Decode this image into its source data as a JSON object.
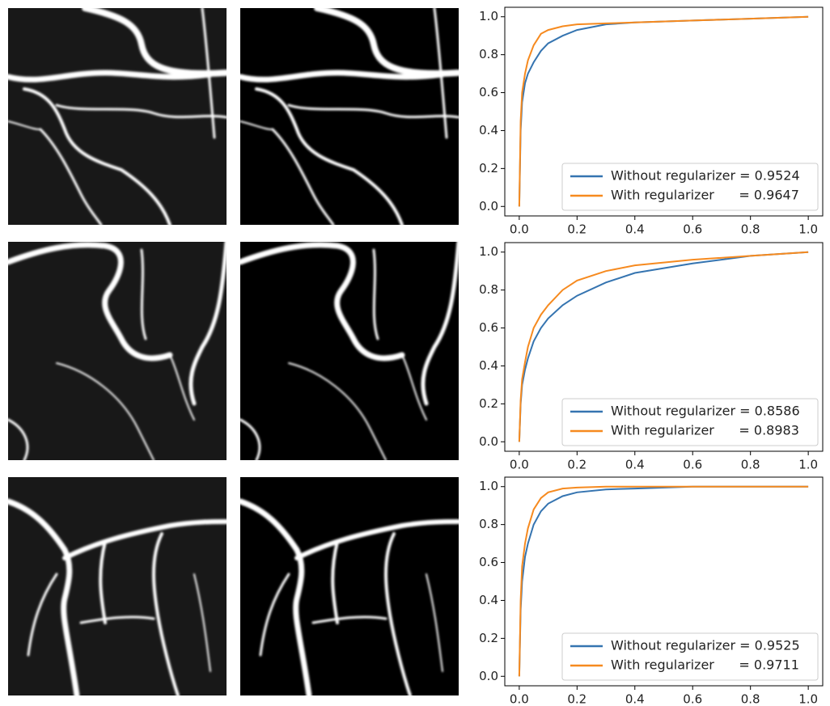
{
  "chart_data": [
    {
      "type": "line",
      "x": [
        0,
        0.005,
        0.01,
        0.02,
        0.03,
        0.05,
        0.075,
        0.1,
        0.15,
        0.2,
        0.3,
        0.4,
        0.6,
        0.8,
        1.0
      ],
      "series": [
        {
          "name": "Without regularizer = 0.9524",
          "color": "#3574b0",
          "values": [
            0,
            0.4,
            0.55,
            0.65,
            0.7,
            0.76,
            0.82,
            0.86,
            0.9,
            0.93,
            0.96,
            0.97,
            0.98,
            0.99,
            1.0
          ]
        },
        {
          "name": "With regularizer      = 0.9647",
          "color": "#f68a1f",
          "values": [
            0,
            0.45,
            0.6,
            0.7,
            0.77,
            0.85,
            0.91,
            0.93,
            0.95,
            0.96,
            0.965,
            0.97,
            0.98,
            0.99,
            1.0
          ]
        }
      ],
      "xlim": [
        -0.05,
        1.05
      ],
      "ylim": [
        -0.05,
        1.05
      ],
      "xticks": [
        {
          "value": 0,
          "label": "0.0"
        },
        0.2,
        0.4,
        0.6,
        0.8,
        {
          "value": 1,
          "label": "1.0"
        }
      ],
      "yticks": [
        {
          "value": 0,
          "label": "0.0"
        },
        0.2,
        0.4,
        0.6,
        0.8,
        {
          "value": 1,
          "label": "1.0"
        }
      ],
      "legend": "lower right"
    },
    {
      "type": "line",
      "x": [
        0,
        0.005,
        0.01,
        0.02,
        0.03,
        0.05,
        0.075,
        0.1,
        0.15,
        0.2,
        0.3,
        0.4,
        0.6,
        0.8,
        1.0
      ],
      "series": [
        {
          "name": "Without regularizer = 0.8586",
          "color": "#3574b0",
          "values": [
            0,
            0.2,
            0.3,
            0.38,
            0.44,
            0.53,
            0.6,
            0.65,
            0.72,
            0.77,
            0.84,
            0.89,
            0.94,
            0.98,
            1.0
          ]
        },
        {
          "name": "With regularizer      = 0.8983",
          "color": "#f68a1f",
          "values": [
            0,
            0.22,
            0.33,
            0.42,
            0.5,
            0.6,
            0.67,
            0.72,
            0.8,
            0.85,
            0.9,
            0.93,
            0.96,
            0.98,
            1.0
          ]
        }
      ],
      "xlim": [
        -0.05,
        1.05
      ],
      "ylim": [
        -0.05,
        1.05
      ],
      "xticks": [
        {
          "value": 0,
          "label": "0.0"
        },
        0.2,
        0.4,
        0.6,
        0.8,
        {
          "value": 1,
          "label": "1.0"
        }
      ],
      "yticks": [
        {
          "value": 0,
          "label": "0.0"
        },
        0.2,
        0.4,
        0.6,
        0.8,
        {
          "value": 1,
          "label": "1.0"
        }
      ],
      "legend": "lower right"
    },
    {
      "type": "line",
      "x": [
        0,
        0.005,
        0.01,
        0.02,
        0.03,
        0.05,
        0.075,
        0.1,
        0.15,
        0.2,
        0.3,
        0.4,
        0.6,
        0.8,
        1.0
      ],
      "series": [
        {
          "name": "Without regularizer = 0.9525",
          "color": "#3574b0",
          "values": [
            0,
            0.35,
            0.5,
            0.63,
            0.7,
            0.8,
            0.87,
            0.91,
            0.95,
            0.97,
            0.985,
            0.99,
            1.0,
            1.0,
            1.0
          ]
        },
        {
          "name": "With regularizer      = 0.9711",
          "color": "#f68a1f",
          "values": [
            0,
            0.4,
            0.58,
            0.7,
            0.78,
            0.88,
            0.94,
            0.97,
            0.99,
            0.995,
            1.0,
            1.0,
            1.0,
            1.0,
            1.0
          ]
        }
      ],
      "xlim": [
        -0.05,
        1.05
      ],
      "ylim": [
        -0.05,
        1.05
      ],
      "xticks": [
        {
          "value": 0,
          "label": "0.0"
        },
        0.2,
        0.4,
        0.6,
        0.8,
        {
          "value": 1,
          "label": "1.0"
        }
      ],
      "yticks": [
        {
          "value": 0,
          "label": "0.0"
        },
        0.2,
        0.4,
        0.6,
        0.8,
        {
          "value": 1,
          "label": "1.0"
        }
      ],
      "legend": "lower right"
    }
  ]
}
